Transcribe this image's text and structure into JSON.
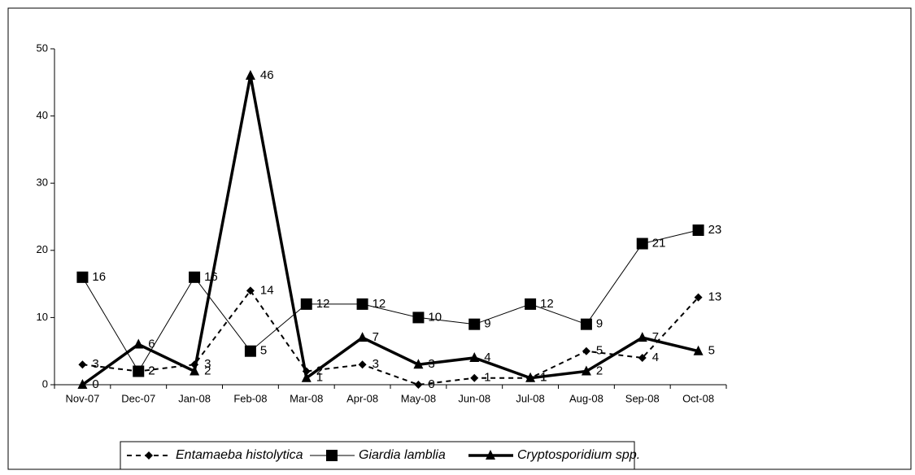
{
  "chart_data": {
    "type": "line",
    "categories": [
      "Nov-07",
      "Dec-07",
      "Jan-08",
      "Feb-08",
      "Mar-08",
      "Apr-08",
      "May-08",
      "Jun-08",
      "Jul-08",
      "Aug-08",
      "Sep-08",
      "Oct-08"
    ],
    "series": [
      {
        "name": "Entamaeba histolytica",
        "color": "#000000",
        "line_style": "dashed",
        "line_width": 2,
        "marker": "diamond",
        "values": [
          3,
          2,
          3,
          14,
          2,
          3,
          0,
          1,
          1,
          5,
          4,
          13
        ]
      },
      {
        "name": "Giardia lamblia",
        "color": "#000000",
        "line_style": "solid",
        "line_width": 1,
        "marker": "square",
        "values": [
          16,
          2,
          16,
          5,
          12,
          12,
          10,
          9,
          12,
          9,
          21,
          23
        ]
      },
      {
        "name": "Cryptosporidium spp.",
        "color": "#000000",
        "line_style": "solid",
        "line_width": 3.5,
        "marker": "triangle",
        "values": [
          0,
          6,
          2,
          46,
          1,
          7,
          3,
          4,
          1,
          2,
          7,
          5
        ]
      }
    ],
    "ylim": [
      0,
      50
    ],
    "yticks": [
      0,
      10,
      20,
      30,
      40,
      50
    ],
    "legend": "bottom"
  }
}
